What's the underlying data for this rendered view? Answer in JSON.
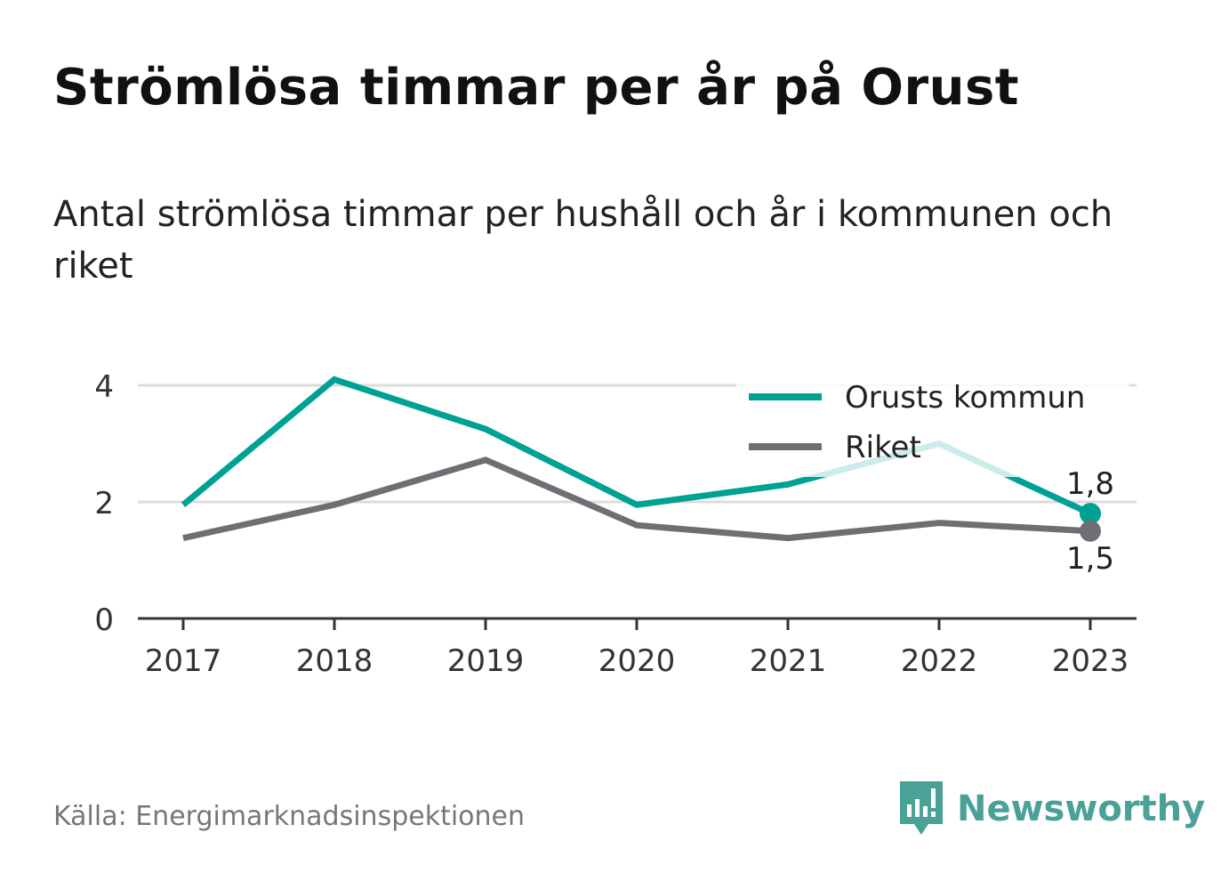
{
  "title": "Strömlösa timmar per år på Orust",
  "subtitle": "Antal strömlösa timmar per hushåll och år i kommunen och riket",
  "source": "Källa: Energimarknadsinspektionen",
  "brand": "Newsworthy",
  "colors": {
    "orust": "#00a195",
    "riket": "#6e6e75",
    "grid": "#dcdcdc",
    "axis": "#333333",
    "brand": "#4aa198"
  },
  "chart_data": {
    "type": "line",
    "categories": [
      "2017",
      "2018",
      "2019",
      "2020",
      "2021",
      "2022",
      "2023"
    ],
    "series": [
      {
        "name": "Orusts kommun",
        "values": [
          1.95,
          4.1,
          3.25,
          1.95,
          2.3,
          3.0,
          1.8
        ],
        "end_label": "1,8",
        "color": "#00a195"
      },
      {
        "name": "Riket",
        "values": [
          1.38,
          1.95,
          2.72,
          1.6,
          1.38,
          1.64,
          1.5
        ],
        "end_label": "1,5",
        "color": "#6e6e75"
      }
    ],
    "yticks": [
      0,
      2,
      4
    ],
    "ylim": [
      0,
      4.3
    ],
    "grid": true,
    "legend": "top-right"
  }
}
